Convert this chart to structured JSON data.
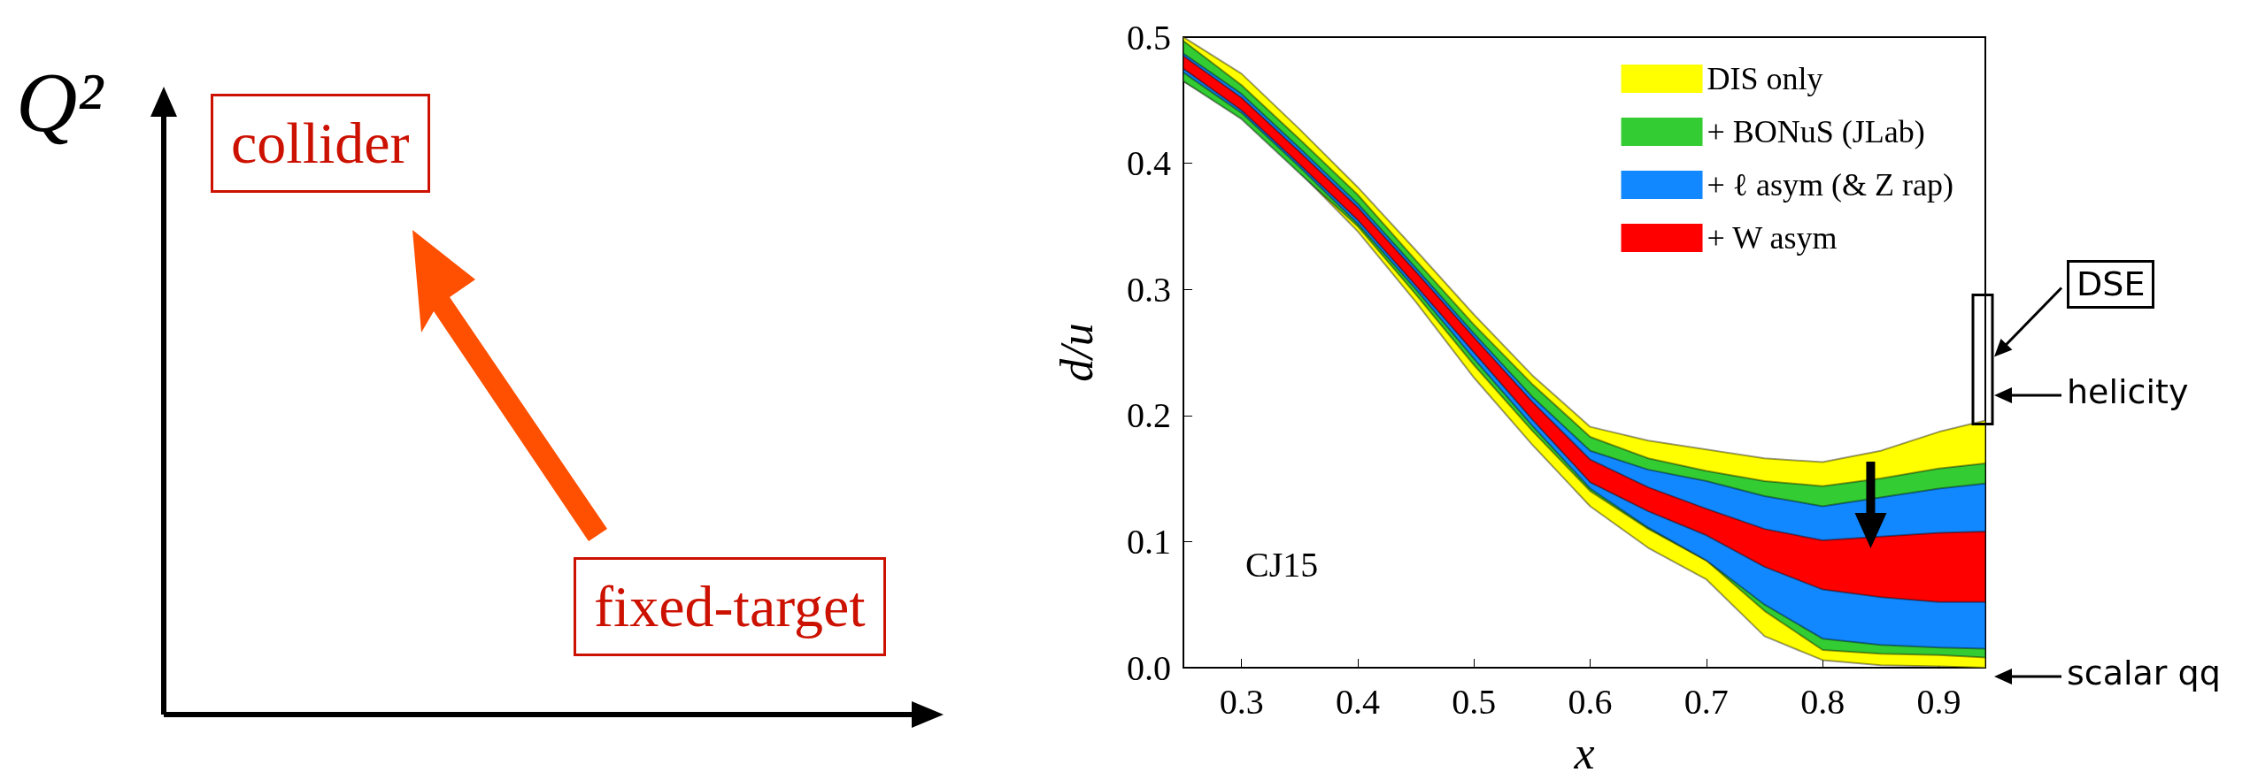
{
  "chart_data": [
    {
      "type": "other",
      "ylabel": "Q²",
      "annotations": [
        "collider",
        "fixed-target"
      ]
    },
    {
      "type": "area",
      "xlabel": "x",
      "ylabel": "d/u",
      "x": [
        0.25,
        0.3,
        0.35,
        0.4,
        0.45,
        0.5,
        0.55,
        0.6,
        0.65,
        0.7,
        0.75,
        0.8,
        0.85,
        0.9,
        0.94
      ],
      "xlim": [
        0.25,
        0.94
      ],
      "xticks": [
        0.3,
        0.4,
        0.5,
        0.6,
        0.7,
        0.8,
        0.9
      ],
      "ylim": [
        0,
        0.5
      ],
      "yticks": [
        {
          "value": 0,
          "label": "0.0"
        },
        0.1,
        0.2,
        0.3,
        0.4,
        0.5
      ],
      "grid": false,
      "legend": "top right",
      "series": [
        {
          "name": "DIS only",
          "color": "#ffff00",
          "values": [
            null,
            null,
            null,
            null,
            null,
            null,
            null,
            null,
            null,
            null,
            null,
            null,
            null,
            null,
            null
          ],
          "lower": [
            0.465,
            0.438,
            0.393,
            0.346,
            0.29,
            0.23,
            0.177,
            0.128,
            0.095,
            0.07,
            0.025,
            0.006,
            0.002,
            0.001,
            0.0
          ],
          "upper": [
            0.5,
            0.471,
            0.427,
            0.381,
            0.331,
            0.28,
            0.232,
            0.191,
            0.18,
            0.173,
            0.166,
            0.163,
            0.172,
            0.187,
            0.196
          ]
        },
        {
          "name": "+ BONuS (JLab)",
          "color": "#33cc33",
          "values": [
            null,
            null,
            null,
            null,
            null,
            null,
            null,
            null,
            null,
            null,
            null,
            null,
            null,
            null,
            null
          ],
          "lower": [
            0.465,
            0.435,
            0.392,
            0.35,
            0.296,
            0.24,
            0.188,
            0.14,
            0.11,
            0.085,
            0.045,
            0.014,
            0.011,
            0.01,
            0.008
          ],
          "upper": [
            0.497,
            0.462,
            0.419,
            0.375,
            0.323,
            0.272,
            0.225,
            0.183,
            0.166,
            0.156,
            0.148,
            0.144,
            0.15,
            0.158,
            0.162
          ]
        },
        {
          "name": "+ ℓ asym (& Z rap)",
          "color": "#1188ff",
          "values": [
            null,
            null,
            null,
            null,
            null,
            null,
            null,
            null,
            null,
            null,
            null,
            null,
            null,
            null,
            null
          ],
          "lower": [
            0.472,
            0.44,
            0.397,
            0.352,
            0.3,
            0.245,
            0.192,
            0.142,
            0.111,
            0.085,
            0.05,
            0.023,
            0.018,
            0.016,
            0.015
          ],
          "upper": [
            0.487,
            0.455,
            0.412,
            0.368,
            0.317,
            0.265,
            0.215,
            0.172,
            0.157,
            0.148,
            0.136,
            0.128,
            0.135,
            0.142,
            0.146
          ]
        },
        {
          "name": "+ W asym",
          "color": "#ff0000",
          "values": [
            null,
            null,
            null,
            null,
            null,
            null,
            null,
            null,
            null,
            null,
            null,
            null,
            null,
            null,
            null
          ],
          "lower": [
            0.475,
            0.442,
            0.399,
            0.355,
            0.303,
            0.25,
            0.197,
            0.147,
            0.124,
            0.105,
            0.08,
            0.062,
            0.056,
            0.052,
            0.052
          ],
          "upper": [
            0.485,
            0.452,
            0.409,
            0.365,
            0.314,
            0.262,
            0.211,
            0.165,
            0.143,
            0.126,
            0.11,
            0.101,
            0.104,
            0.107,
            0.108
          ]
        }
      ],
      "annotations": [
        "CJ15",
        "DSE",
        "helicity",
        "scalar qq"
      ]
    }
  ]
}
